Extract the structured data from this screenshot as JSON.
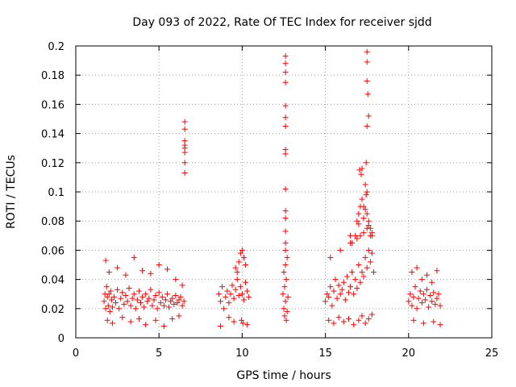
{
  "chart_data": {
    "type": "scatter",
    "title": "Day 093 of 2022, Rate Of TEC Index for receiver sjdd",
    "xlabel": "GPS time / hours",
    "ylabel": "ROTI / TECUs",
    "xlim": [
      0,
      25
    ],
    "ylim": [
      0,
      0.2
    ],
    "x_ticks": [
      "0",
      "5",
      "10",
      "15",
      "20",
      "25"
    ],
    "y_ticks": [
      "0",
      "0.02",
      "0.04",
      "0.06",
      "0.08",
      "0.1",
      "0.12",
      "0.14",
      "0.16",
      "0.18",
      "0.2"
    ],
    "grid": true,
    "marker": "+",
    "color": "#ff0000",
    "series": [
      {
        "x": [
          1.7,
          1.75,
          1.8,
          1.85,
          1.9,
          1.95,
          2.0,
          2.05,
          2.1,
          2.15,
          2.2,
          2.3,
          2.4,
          2.5,
          2.6,
          2.7,
          2.8,
          2.9,
          3.0,
          3.1,
          3.2,
          3.3,
          3.4,
          3.5,
          3.6,
          3.7,
          3.8,
          3.9,
          4.0,
          4.1,
          4.2,
          4.3,
          4.4,
          4.5,
          4.6,
          4.7,
          4.8,
          4.9,
          5.0,
          5.1,
          5.2,
          5.3,
          5.4,
          5.5,
          5.6,
          5.7,
          5.8,
          5.9,
          6.0,
          6.1,
          6.2,
          6.3,
          6.4,
          6.5,
          1.8,
          2.0,
          2.5,
          3.0,
          3.5,
          4.0,
          4.5,
          5.0,
          5.5,
          6.0,
          6.4,
          1.9,
          2.2,
          2.8,
          3.3,
          3.8,
          4.2,
          4.8,
          5.3,
          5.8,
          6.2,
          6.55,
          6.55,
          6.55,
          6.55,
          6.55,
          6.55,
          6.55,
          6.55,
          8.6,
          8.7,
          8.8,
          8.9,
          9.0,
          9.1,
          9.2,
          9.3,
          9.4,
          9.5,
          9.6,
          9.7,
          9.8,
          9.9,
          10.0,
          10.1,
          10.2,
          10.3,
          10.4,
          9.6,
          9.8,
          9.9,
          10.0,
          10.1,
          10.2,
          9.7,
          9.95,
          10.05,
          8.7,
          9.2,
          9.5,
          10.3,
          12.45,
          12.5,
          12.55,
          12.6,
          12.65,
          12.7,
          12.75,
          12.5,
          12.6,
          12.7,
          12.55,
          12.65,
          12.6,
          12.6,
          12.6,
          12.6,
          12.6,
          12.6,
          12.6,
          12.6,
          12.6,
          12.6,
          12.6,
          12.6,
          12.6,
          12.6,
          12.6,
          15.0,
          15.1,
          15.2,
          15.3,
          15.4,
          15.5,
          15.6,
          15.7,
          15.8,
          15.9,
          16.0,
          16.1,
          16.2,
          16.3,
          16.4,
          16.5,
          16.6,
          16.7,
          16.8,
          16.9,
          17.0,
          17.1,
          17.2,
          17.3,
          17.4,
          17.5,
          17.6,
          17.7,
          17.8,
          17.9,
          15.2,
          15.5,
          15.8,
          16.1,
          16.4,
          16.7,
          17.0,
          17.2,
          17.4,
          17.6,
          17.8,
          15.3,
          15.9,
          16.5,
          16.9,
          17.1,
          17.3,
          17.5,
          17.7,
          16.6,
          16.8,
          16.9,
          17.0,
          17.1,
          17.2,
          17.3,
          17.4,
          17.5,
          17.6,
          17.7,
          17.8,
          16.5,
          17.0,
          17.3,
          17.6,
          17.8,
          17.05,
          17.15,
          17.2,
          17.4,
          17.45,
          17.5,
          17.5,
          17.5,
          17.55,
          17.6,
          17.5,
          17.5,
          17.45,
          20.0,
          20.1,
          20.2,
          20.3,
          20.4,
          20.5,
          20.6,
          20.7,
          20.8,
          20.9,
          21.0,
          21.1,
          21.2,
          21.3,
          21.4,
          21.5,
          21.6,
          21.7,
          21.8,
          21.9,
          20.2,
          20.5,
          20.8,
          21.1,
          21.4,
          21.7,
          20.3,
          20.9,
          21.5,
          21.9
        ],
        "y": [
          0.025,
          0.03,
          0.02,
          0.035,
          0.028,
          0.022,
          0.03,
          0.018,
          0.032,
          0.026,
          0.021,
          0.028,
          0.024,
          0.033,
          0.02,
          0.027,
          0.031,
          0.023,
          0.029,
          0.025,
          0.034,
          0.022,
          0.027,
          0.03,
          0.02,
          0.026,
          0.032,
          0.024,
          0.028,
          0.021,
          0.03,
          0.025,
          0.027,
          0.033,
          0.022,
          0.026,
          0.029,
          0.02,
          0.031,
          0.024,
          0.028,
          0.022,
          0.026,
          0.03,
          0.021,
          0.025,
          0.027,
          0.023,
          0.029,
          0.024,
          0.026,
          0.028,
          0.022,
          0.025,
          0.053,
          0.045,
          0.048,
          0.043,
          0.055,
          0.046,
          0.044,
          0.05,
          0.047,
          0.04,
          0.036,
          0.012,
          0.01,
          0.014,
          0.011,
          0.013,
          0.009,
          0.012,
          0.008,
          0.013,
          0.015,
          0.148,
          0.143,
          0.135,
          0.13,
          0.127,
          0.12,
          0.113,
          0.132,
          0.03,
          0.025,
          0.035,
          0.02,
          0.028,
          0.032,
          0.024,
          0.03,
          0.036,
          0.027,
          0.033,
          0.04,
          0.029,
          0.035,
          0.03,
          0.026,
          0.038,
          0.032,
          0.028,
          0.048,
          0.052,
          0.058,
          0.06,
          0.055,
          0.05,
          0.045,
          0.012,
          0.01,
          0.008,
          0.014,
          0.011,
          0.009,
          0.03,
          0.02,
          0.035,
          0.025,
          0.04,
          0.018,
          0.028,
          0.045,
          0.05,
          0.055,
          0.015,
          0.012,
          0.193,
          0.188,
          0.182,
          0.175,
          0.159,
          0.151,
          0.145,
          0.129,
          0.126,
          0.102,
          0.087,
          0.082,
          0.073,
          0.065,
          0.06,
          0.025,
          0.03,
          0.028,
          0.035,
          0.022,
          0.032,
          0.04,
          0.027,
          0.036,
          0.03,
          0.033,
          0.038,
          0.026,
          0.042,
          0.031,
          0.035,
          0.045,
          0.03,
          0.04,
          0.034,
          0.05,
          0.038,
          0.045,
          0.042,
          0.055,
          0.048,
          0.06,
          0.052,
          0.058,
          0.045,
          0.012,
          0.01,
          0.014,
          0.011,
          0.013,
          0.009,
          0.012,
          0.015,
          0.01,
          0.013,
          0.016,
          0.055,
          0.06,
          0.065,
          0.068,
          0.07,
          0.072,
          0.075,
          0.07,
          0.065,
          0.07,
          0.08,
          0.085,
          0.09,
          0.095,
          0.09,
          0.088,
          0.085,
          0.08,
          0.075,
          0.07,
          0.07,
          0.078,
          0.082,
          0.077,
          0.072,
          0.115,
          0.112,
          0.116,
          0.105,
          0.12,
          0.196,
          0.189,
          0.176,
          0.167,
          0.152,
          0.145,
          0.1,
          0.098,
          0.025,
          0.03,
          0.022,
          0.028,
          0.035,
          0.02,
          0.027,
          0.032,
          0.024,
          0.03,
          0.026,
          0.033,
          0.021,
          0.029,
          0.025,
          0.031,
          0.023,
          0.027,
          0.03,
          0.022,
          0.045,
          0.048,
          0.04,
          0.043,
          0.038,
          0.046,
          0.012,
          0.01,
          0.011,
          0.009
        ]
      }
    ]
  }
}
